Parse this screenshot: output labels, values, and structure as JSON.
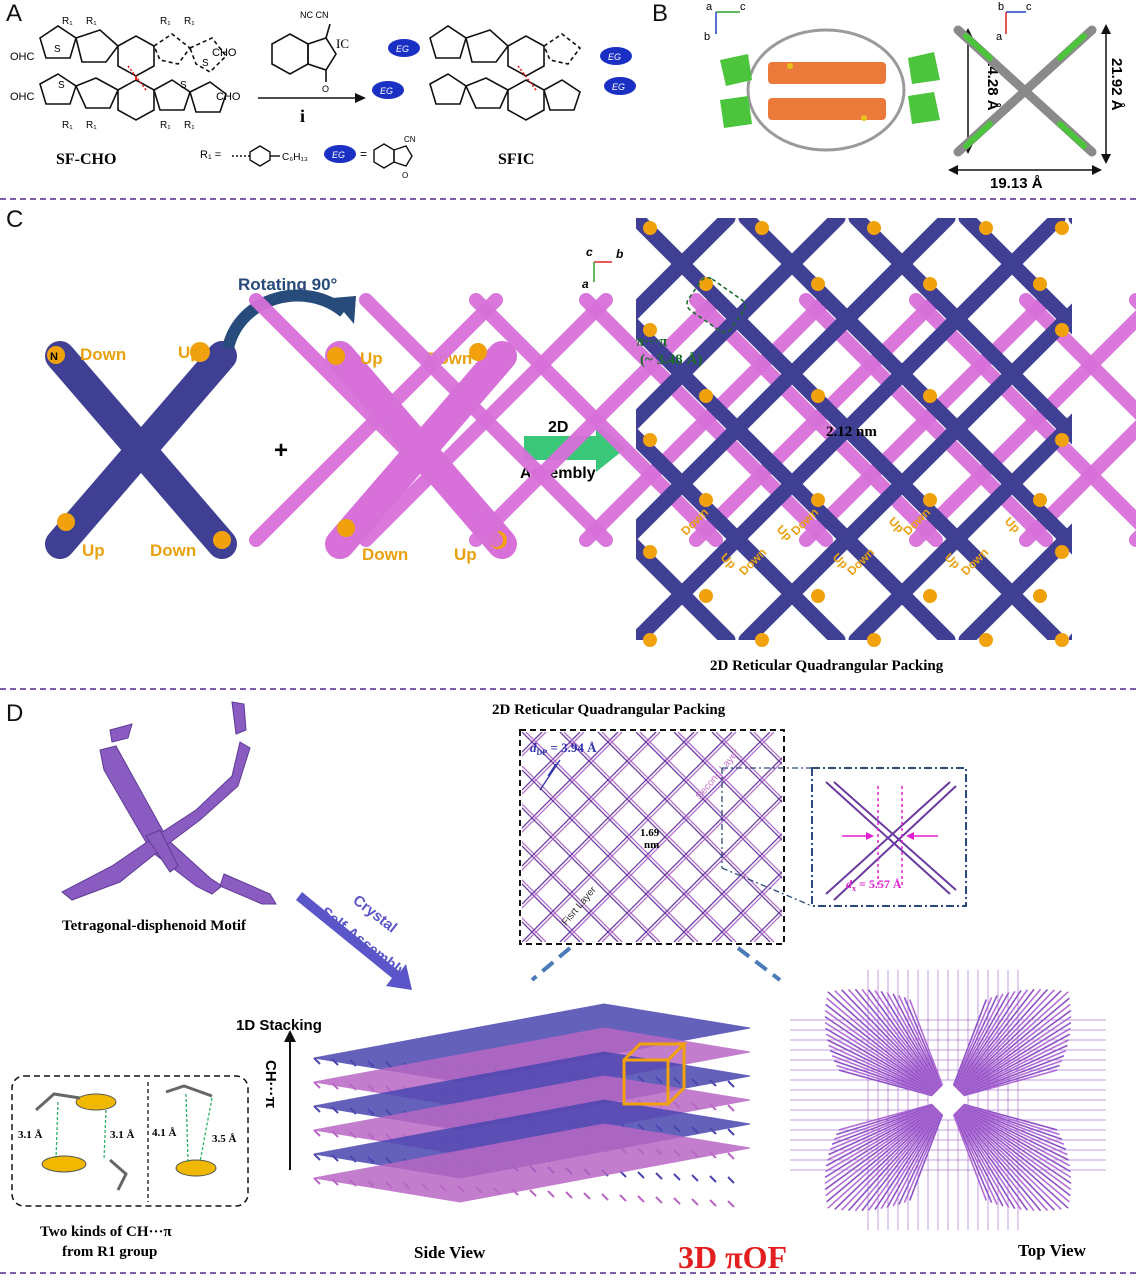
{
  "panels": {
    "a": "A",
    "b": "B",
    "c": "C",
    "d": "D"
  },
  "panel_a": {
    "reagent_ic": "IC",
    "reagent_nc_cn": "NC   CN",
    "step": "i",
    "reactant_name": "SF-CHO",
    "product_name": "SFIC",
    "r1_def": "R₁ =",
    "c6h13": "C₆H₁₃",
    "eg_badge": "EG",
    "eg_def": "=",
    "ohc": "OHC",
    "cho": "CHO",
    "s": "S",
    "r1": "R₁",
    "cn": "CN",
    "o": "O"
  },
  "panel_b": {
    "dim_height_left": "14.28 Å",
    "dim_height_right": "21.92 Å",
    "dim_width": "19.13 Å",
    "axis_a": "a",
    "axis_b": "b",
    "axis_c": "c"
  },
  "panel_c": {
    "rotating": "Rotating 90°",
    "n_label": "N",
    "down": "Down",
    "up": "Up",
    "plus": "+",
    "assembly_2d": "2D",
    "assembly": "Assembly",
    "pi_pi": "π···π",
    "pi_pi_dist": "(~ 3.48 Å)",
    "pore": "2.12 nm",
    "caption": "2D Reticular Quadrangular Packing",
    "axis_c": "c",
    "axis_b": "b",
    "axis_a": "a"
  },
  "panel_d": {
    "motif": "Tetragonal-disphenoid Motif",
    "crystal": "Crystal",
    "self_assembly": "Self-Assembly",
    "packing_title": "2D Reticular Quadrangular Packing",
    "d_dp": "d",
    "d_dp_sub": "DP",
    "d_dp_val": " = 3.94 Å",
    "pore": "1.69",
    "pore_unit": "nm",
    "second_layer": "Second Layer",
    "first_layer": "Fisrt Layer",
    "d_x": "d",
    "d_x_sub": "x",
    "d_x_val": " = 5.57 Å",
    "stacking": "1D Stacking",
    "ch_pi": "CH···π",
    "dist1": "3.1 Å",
    "dist2": "3.1 Å",
    "dist3": "4.1 Å",
    "dist4": "3.5 Å",
    "two_kinds_1": "Two kinds of  CH···π",
    "two_kinds_2": "from R1  group",
    "side_view": "Side View",
    "pi_of": "3D πOF",
    "top_view": "Top View"
  },
  "colors": {
    "indigo": "#3f3f94",
    "pink": "#d770d9",
    "orange": "#f0a10b",
    "purple": "#8a5cc2",
    "green": "#2f8a2f",
    "red": "#e31e1e",
    "arrow_blue": "#274b7a",
    "sep": "#7b5ea6"
  }
}
